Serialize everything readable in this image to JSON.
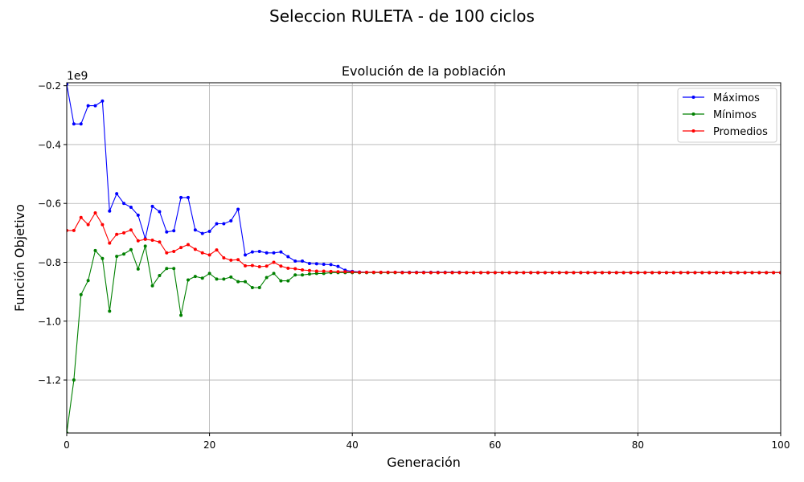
{
  "figure": {
    "title": "Seleccion RULETA - de 100 ciclos"
  },
  "chart_data": {
    "type": "line",
    "title": "Evolución de la población",
    "xlabel": "Generación",
    "ylabel": "Función Objetivo",
    "y_multiplier_label": "1e9",
    "xlim": [
      0,
      100
    ],
    "ylim": [
      -1.38,
      -0.19
    ],
    "x_ticks": [
      0,
      20,
      40,
      60,
      80,
      100
    ],
    "x_tick_labels": [
      "0",
      "20",
      "40",
      "60",
      "80",
      "100"
    ],
    "y_ticks": [
      -1.2,
      -1.0,
      -0.8,
      -0.6,
      -0.4,
      -0.2
    ],
    "y_tick_labels": [
      "−1.2",
      "−1.0",
      "−0.8",
      "−0.6",
      "−0.4",
      "−0.2"
    ],
    "grid": true,
    "legend_position": "top-right",
    "x": [
      0,
      1,
      2,
      3,
      4,
      5,
      6,
      7,
      8,
      9,
      10,
      11,
      12,
      13,
      14,
      15,
      16,
      17,
      18,
      19,
      20,
      21,
      22,
      23,
      24,
      25,
      26,
      27,
      28,
      29,
      30,
      31,
      32,
      33,
      34,
      35,
      36,
      37,
      38,
      39,
      40,
      41,
      42,
      43,
      44,
      45,
      46,
      47,
      48,
      49,
      50,
      51,
      52,
      53,
      54,
      55,
      56,
      57,
      58,
      59,
      60,
      61,
      62,
      63,
      64,
      65,
      66,
      67,
      68,
      69,
      70,
      71,
      72,
      73,
      74,
      75,
      76,
      77,
      78,
      79,
      80,
      81,
      82,
      83,
      84,
      85,
      86,
      87,
      88,
      89,
      90,
      91,
      92,
      93,
      94,
      95,
      96,
      97,
      98,
      99,
      100
    ],
    "series": [
      {
        "name": "Máximos",
        "color": "#0000ff",
        "values": [
          -0.195,
          -0.33,
          -0.33,
          -0.268,
          -0.268,
          -0.252,
          -0.626,
          -0.567,
          -0.6,
          -0.613,
          -0.64,
          -0.72,
          -0.61,
          -0.628,
          -0.697,
          -0.693,
          -0.58,
          -0.58,
          -0.69,
          -0.702,
          -0.695,
          -0.669,
          -0.669,
          -0.659,
          -0.62,
          -0.775,
          -0.765,
          -0.763,
          -0.768,
          -0.768,
          -0.765,
          -0.781,
          -0.796,
          -0.796,
          -0.804,
          -0.805,
          -0.807,
          -0.808,
          -0.814,
          -0.827,
          -0.831,
          -0.833,
          -0.834,
          -0.834,
          -0.834,
          -0.834,
          -0.834,
          -0.834,
          -0.834,
          -0.834,
          -0.834,
          -0.834,
          -0.834,
          -0.834,
          -0.834,
          -0.834,
          -0.835,
          -0.835,
          -0.835,
          -0.835,
          -0.835,
          -0.835,
          -0.835,
          -0.835,
          -0.835,
          -0.835,
          -0.835,
          -0.835,
          -0.835,
          -0.835,
          -0.835,
          -0.835,
          -0.835,
          -0.835,
          -0.835,
          -0.835,
          -0.835,
          -0.835,
          -0.835,
          -0.835,
          -0.835,
          -0.835,
          -0.835,
          -0.835,
          -0.835,
          -0.835,
          -0.835,
          -0.835,
          -0.835,
          -0.835,
          -0.835,
          -0.835,
          -0.835,
          -0.835,
          -0.835,
          -0.835,
          -0.835,
          -0.835,
          -0.835,
          -0.835,
          -0.835
        ]
      },
      {
        "name": "Mínimos",
        "color": "#008000",
        "values": [
          -1.38,
          -1.2,
          -0.91,
          -0.862,
          -0.76,
          -0.787,
          -0.966,
          -0.78,
          -0.772,
          -0.757,
          -0.823,
          -0.745,
          -0.88,
          -0.845,
          -0.821,
          -0.821,
          -0.98,
          -0.86,
          -0.848,
          -0.854,
          -0.838,
          -0.857,
          -0.857,
          -0.85,
          -0.866,
          -0.866,
          -0.886,
          -0.886,
          -0.852,
          -0.838,
          -0.863,
          -0.863,
          -0.843,
          -0.843,
          -0.84,
          -0.838,
          -0.838,
          -0.835,
          -0.835,
          -0.835,
          -0.835,
          -0.835,
          -0.835,
          -0.835,
          -0.835,
          -0.835,
          -0.835,
          -0.835,
          -0.835,
          -0.835,
          -0.835,
          -0.835,
          -0.835,
          -0.835,
          -0.835,
          -0.835,
          -0.835,
          -0.835,
          -0.835,
          -0.835,
          -0.835,
          -0.835,
          -0.835,
          -0.835,
          -0.835,
          -0.835,
          -0.835,
          -0.835,
          -0.835,
          -0.835,
          -0.835,
          -0.835,
          -0.835,
          -0.835,
          -0.835,
          -0.835,
          -0.835,
          -0.835,
          -0.835,
          -0.835,
          -0.835,
          -0.835,
          -0.835,
          -0.835,
          -0.835,
          -0.835,
          -0.835,
          -0.835,
          -0.835,
          -0.835,
          -0.835,
          -0.835,
          -0.835,
          -0.835,
          -0.835,
          -0.835,
          -0.835,
          -0.835,
          -0.835,
          -0.835,
          -0.835
        ]
      },
      {
        "name": "Promedios",
        "color": "#ff0000",
        "values": [
          -0.692,
          -0.692,
          -0.648,
          -0.672,
          -0.632,
          -0.672,
          -0.735,
          -0.705,
          -0.7,
          -0.69,
          -0.727,
          -0.722,
          -0.725,
          -0.731,
          -0.768,
          -0.763,
          -0.75,
          -0.74,
          -0.756,
          -0.768,
          -0.775,
          -0.758,
          -0.785,
          -0.793,
          -0.791,
          -0.812,
          -0.811,
          -0.815,
          -0.813,
          -0.8,
          -0.813,
          -0.82,
          -0.822,
          -0.826,
          -0.828,
          -0.83,
          -0.83,
          -0.831,
          -0.832,
          -0.832,
          -0.833,
          -0.834,
          -0.834,
          -0.834,
          -0.834,
          -0.834,
          -0.834,
          -0.835,
          -0.835,
          -0.835,
          -0.835,
          -0.835,
          -0.835,
          -0.835,
          -0.835,
          -0.835,
          -0.835,
          -0.835,
          -0.835,
          -0.835,
          -0.835,
          -0.835,
          -0.835,
          -0.835,
          -0.835,
          -0.835,
          -0.835,
          -0.835,
          -0.835,
          -0.835,
          -0.835,
          -0.835,
          -0.835,
          -0.835,
          -0.835,
          -0.835,
          -0.835,
          -0.835,
          -0.835,
          -0.835,
          -0.835,
          -0.835,
          -0.835,
          -0.835,
          -0.835,
          -0.835,
          -0.835,
          -0.835,
          -0.835,
          -0.835,
          -0.835,
          -0.835,
          -0.835,
          -0.835,
          -0.835,
          -0.835,
          -0.835,
          -0.835,
          -0.835,
          -0.835,
          -0.835
        ]
      }
    ]
  }
}
